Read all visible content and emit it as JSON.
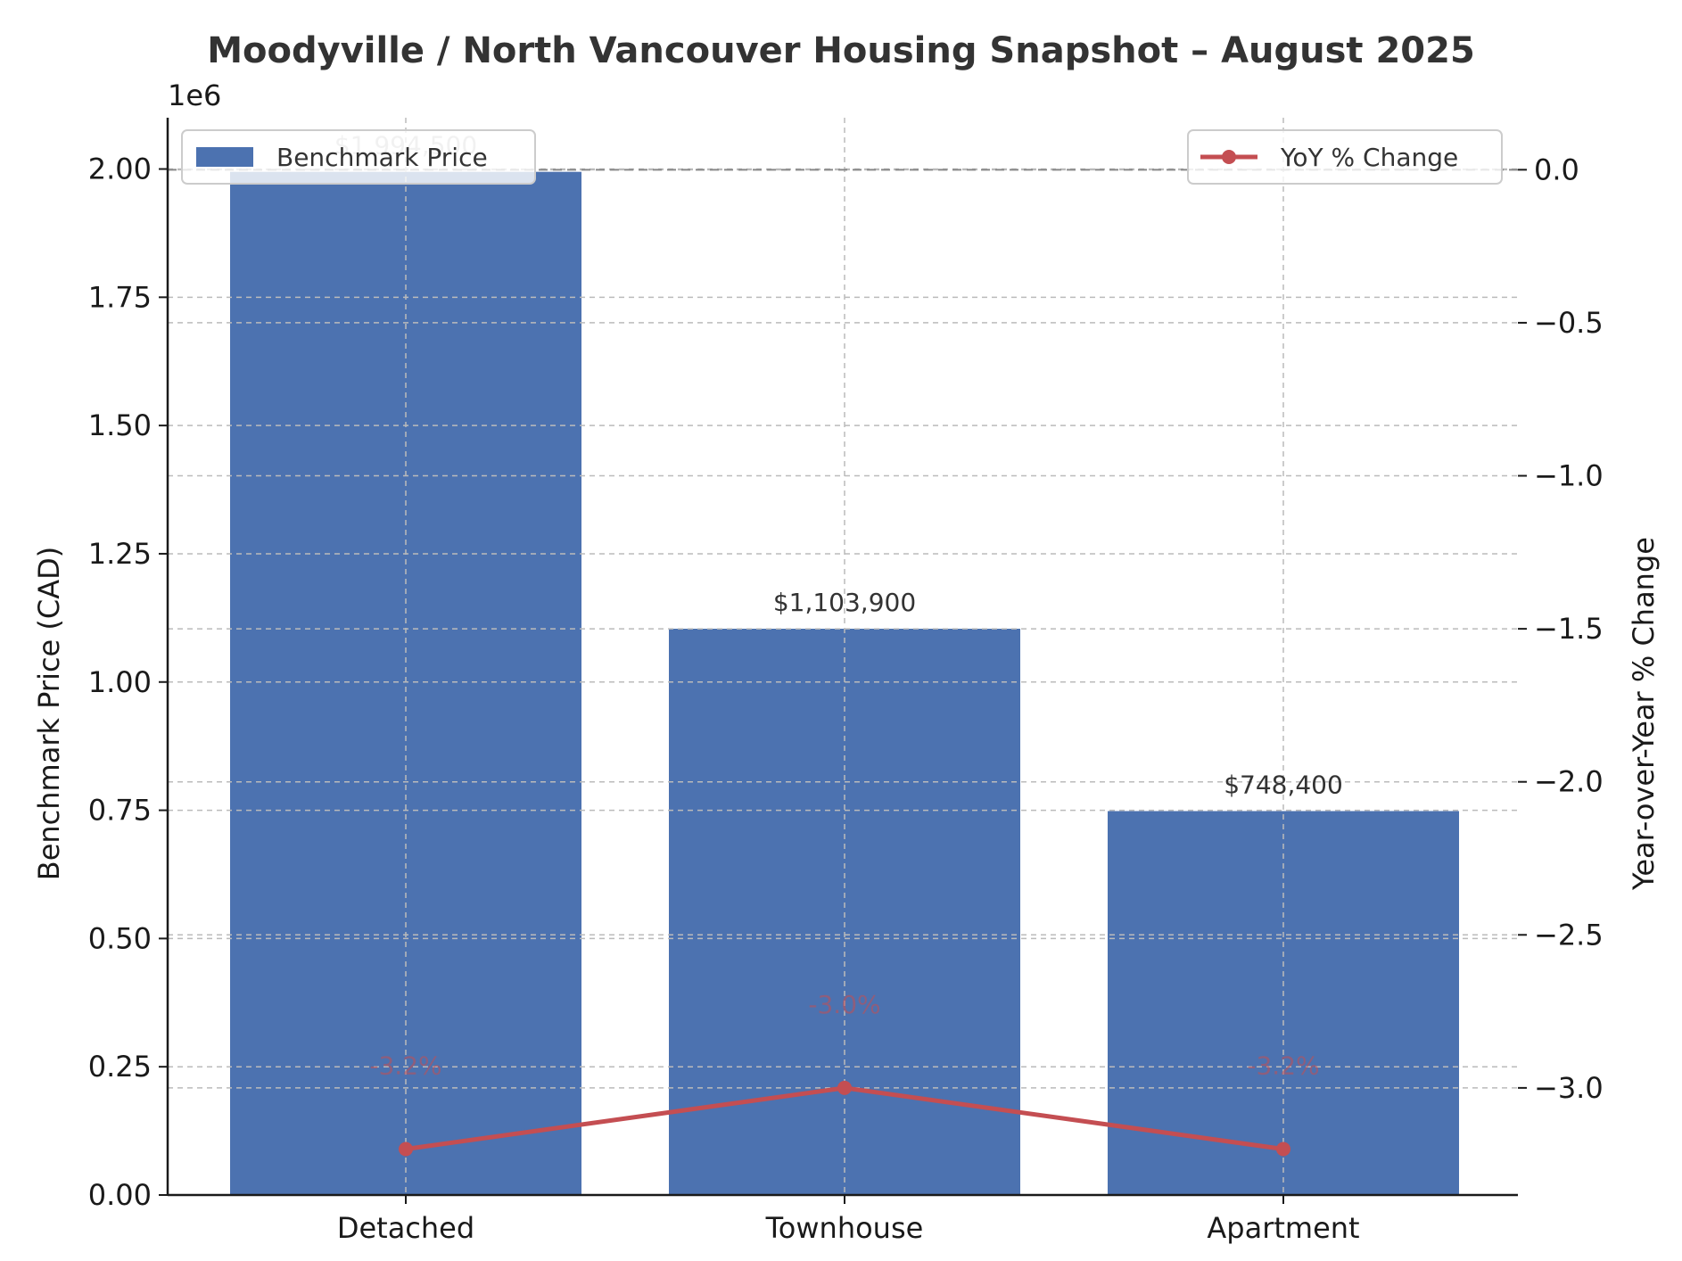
{
  "chart_data": {
    "type": "bar",
    "title": "Moodyville / North Vancouver Housing Snapshot – August 2025",
    "categories": [
      "Detached",
      "Townhouse",
      "Apartment"
    ],
    "series": [
      {
        "name": "Benchmark Price",
        "type": "bar",
        "axis": "left",
        "values": [
          1994500,
          1103900,
          748400
        ],
        "labels": [
          "$1,994,500",
          "$1,103,900",
          "$748,400"
        ],
        "color": "#4c72b0"
      },
      {
        "name": "YoY % Change",
        "type": "line",
        "axis": "right",
        "values": [
          -3.2,
          -3.0,
          -3.2
        ],
        "labels": [
          "-3.2%",
          "-3.0%",
          "-3.2%"
        ],
        "color": "#c44e52"
      }
    ],
    "ylabel": "Benchmark Price (CAD)",
    "ylabel_right": "Year-over-Year % Change",
    "ylim": [
      0,
      2100000
    ],
    "ylim_right": [
      -3.35,
      0.17
    ],
    "y_offset_label": "1e6",
    "yticks": [
      0,
      250000,
      500000,
      750000,
      1000000,
      1250000,
      1500000,
      1750000,
      2000000
    ],
    "ytick_labels": [
      "0.00",
      "0.25",
      "0.50",
      "0.75",
      "1.00",
      "1.25",
      "1.50",
      "1.75",
      "2.00"
    ],
    "yticks_right": [
      0.0,
      -0.5,
      -1.0,
      -1.5,
      -2.0,
      -2.5,
      -3.0
    ],
    "ytick_labels_right": [
      "0.0",
      "−0.5",
      "−1.0",
      "−1.5",
      "−2.0",
      "−2.5",
      "−3.0"
    ],
    "reference_line_right": 0.0,
    "grid": true,
    "legend_bar_position": "top-left",
    "legend_line_position": "top-right"
  }
}
